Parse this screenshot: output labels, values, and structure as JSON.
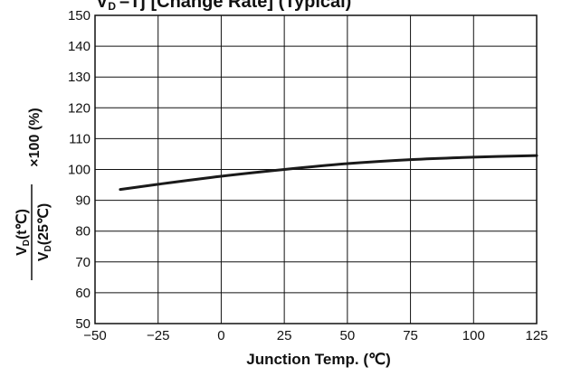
{
  "chart_data": {
    "type": "line",
    "title": "V",
    "title_sub": "D",
    "title_rest": "–Tj [Change Rate] (Typical)",
    "xlabel": "Junction Temp. (℃)",
    "ylabel": {
      "numerator": "V",
      "numerator_sub": "D",
      "numerator_rest": "(t℃)",
      "denominator": "V",
      "denominator_sub": "D",
      "denominator_rest": "(25℃)",
      "multiplier": "×100 (%)"
    },
    "xlim": [
      -50,
      125
    ],
    "ylim": [
      50,
      150
    ],
    "x_ticks": [
      "−50",
      "−25",
      "0",
      "25",
      "50",
      "75",
      "100",
      "125"
    ],
    "x_tick_values": [
      -50,
      -25,
      0,
      25,
      50,
      75,
      100,
      125
    ],
    "y_ticks": [
      "50",
      "60",
      "70",
      "80",
      "90",
      "100",
      "110",
      "120",
      "130",
      "140",
      "150"
    ],
    "y_tick_values": [
      50,
      60,
      70,
      80,
      90,
      100,
      110,
      120,
      130,
      140,
      150
    ],
    "grid": true,
    "series": [
      {
        "x": [
          -40,
          -25,
          0,
          25,
          50,
          75,
          100,
          125
        ],
        "y": [
          93.5,
          95.2,
          97.8,
          100,
          101.9,
          103.2,
          104.0,
          104.5
        ]
      }
    ],
    "line_color": "#1a1a1a"
  }
}
